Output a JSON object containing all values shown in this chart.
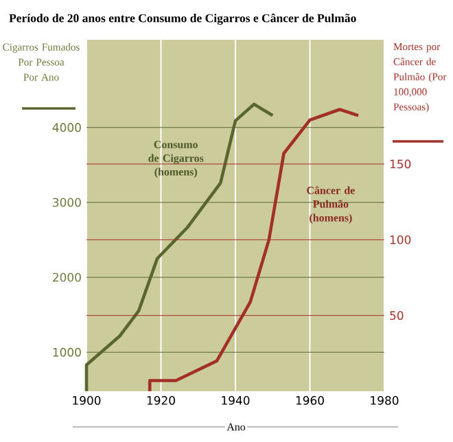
{
  "chart_data": {
    "type": "line",
    "title": "Período de 20 anos entre Consumo de Cigarros e Câncer de Pulmão",
    "xlabel": "Ano",
    "ylabel": "Cigarros Fumados Por Pessoa Por Ano",
    "y2label": "Mortes por Câncer de Pulmão (Por 100,000 Pessoas)",
    "xlim": [
      1900,
      1980
    ],
    "xticks": [
      1900,
      1920,
      1940,
      1960,
      1980
    ],
    "ylim": [
      480,
      5170
    ],
    "yticks": [
      1000,
      2000,
      3000,
      4000
    ],
    "y2lim": [
      0,
      232
    ],
    "y2ticks": [
      50,
      100,
      150
    ],
    "grid": true,
    "marker": "none",
    "line_style": "solid",
    "series": [
      {
        "name": "Consumo de Cigarros (homens)",
        "color": "#5a6630",
        "x": [
          1900,
          1900,
          1909,
          1914,
          1919,
          1927,
          1936,
          1940,
          1945,
          1950
        ],
        "values": [
          480,
          830,
          1220,
          1550,
          2250,
          2660,
          3260,
          4090,
          4310,
          4160
        ]
      },
      {
        "name": "Câncer de Pulmão (homens)",
        "color": "#a33028",
        "axis": "y2",
        "x": [
          1917,
          1917,
          1924,
          1935,
          1944,
          1949,
          1953,
          1960,
          1968,
          1973
        ],
        "values": [
          0,
          7,
          7,
          20,
          59,
          100,
          157,
          179,
          186,
          182
        ]
      }
    ]
  }
}
